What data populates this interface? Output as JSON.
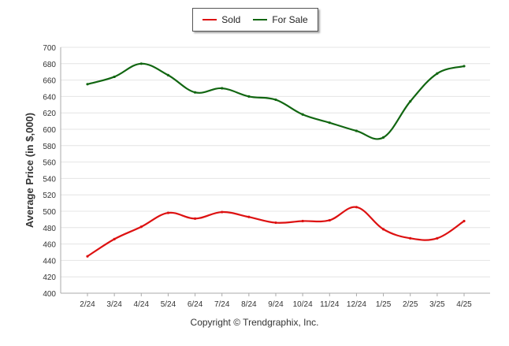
{
  "colors": {
    "sold": "#dd1111",
    "for_sale": "#116611",
    "grid": "#e4e4e4",
    "axis": "#333333"
  },
  "copyright": "Copyright © Trendgraphix, Inc.",
  "chart_data": {
    "type": "line",
    "title": "",
    "xlabel": "",
    "ylabel": "Average Price (in $,000)",
    "ylim": [
      400,
      700
    ],
    "yticks": [
      400,
      420,
      440,
      460,
      480,
      500,
      520,
      540,
      560,
      580,
      600,
      620,
      640,
      660,
      680,
      700
    ],
    "categories": [
      "2/24",
      "3/24",
      "4/24",
      "5/24",
      "6/24",
      "7/24",
      "8/24",
      "9/24",
      "10/24",
      "11/24",
      "12/24",
      "1/25",
      "2/25",
      "3/25",
      "4/25"
    ],
    "grid": true,
    "legend": "top-center",
    "series": [
      {
        "name": "Sold",
        "color": "#dd1111",
        "values": [
          445,
          466,
          481,
          498,
          491,
          499,
          493,
          486,
          488,
          489,
          505,
          478,
          467,
          467,
          488
        ]
      },
      {
        "name": "For Sale",
        "color": "#116611",
        "values": [
          655,
          664,
          680,
          666,
          645,
          650,
          640,
          636,
          618,
          608,
          598,
          590,
          634,
          668,
          677
        ]
      }
    ]
  }
}
